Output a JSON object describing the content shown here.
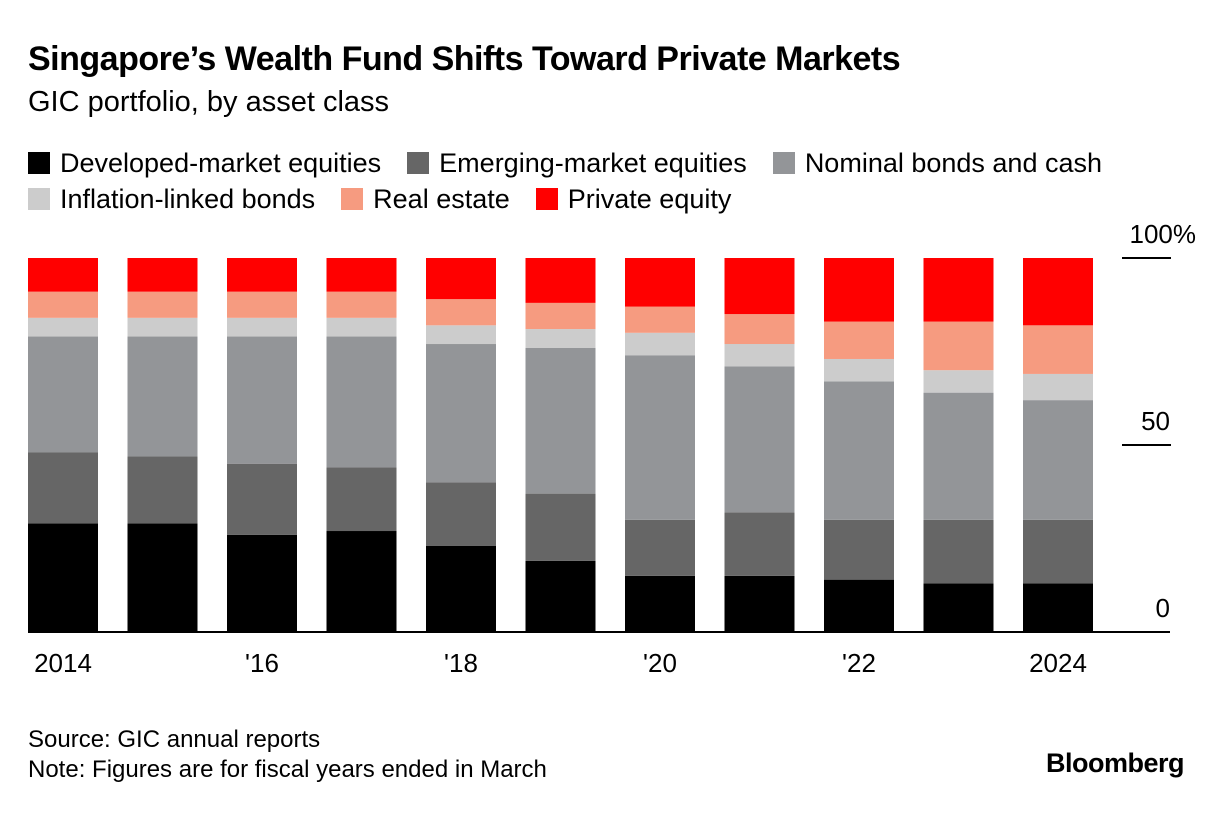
{
  "header": {
    "title": "Singapore’s Wealth Fund Shifts Toward Private Markets",
    "subtitle": "GIC portfolio, by asset class"
  },
  "footer": {
    "source": "Source: GIC annual reports",
    "note": "Note: Figures are for fiscal years ended in March",
    "logo": "Bloomberg"
  },
  "chart_data": {
    "type": "bar",
    "stacked": true,
    "categories": [
      "2014",
      "2015",
      "2016",
      "2017",
      "2018",
      "2019",
      "2020",
      "2021",
      "2022",
      "2023",
      "2024"
    ],
    "x_tick_labels": [
      "2014",
      "",
      "'16",
      "",
      "'18",
      "",
      "'20",
      "",
      "'22",
      "",
      "2024"
    ],
    "y_ticks": [
      {
        "value": 100,
        "label": "100%"
      },
      {
        "value": 50,
        "label": "50"
      },
      {
        "value": 0,
        "label": "0"
      }
    ],
    "ylim": [
      0,
      100
    ],
    "legend_position": "top",
    "grid": false,
    "series": [
      {
        "name": "Developed-market equities",
        "color": "#000000",
        "values": [
          29,
          29,
          26,
          27,
          23,
          19,
          15,
          15,
          14,
          13,
          13
        ]
      },
      {
        "name": "Emerging-market equities",
        "color": "#666666",
        "values": [
          19,
          18,
          19,
          17,
          17,
          18,
          15,
          17,
          16,
          17,
          17
        ]
      },
      {
        "name": "Nominal bonds and cash",
        "color": "#939598",
        "values": [
          31,
          32,
          34,
          35,
          37,
          39,
          44,
          39,
          37,
          34,
          32
        ]
      },
      {
        "name": "Inflation-linked bonds",
        "color": "#cccccc",
        "values": [
          5,
          5,
          5,
          5,
          5,
          5,
          6,
          6,
          6,
          6,
          7
        ]
      },
      {
        "name": "Real estate",
        "color": "#f69b80",
        "values": [
          7,
          7,
          7,
          7,
          7,
          7,
          7,
          8,
          10,
          13,
          13
        ]
      },
      {
        "name": "Private equity",
        "color": "#ff0000",
        "values": [
          9,
          9,
          9,
          9,
          11,
          12,
          13,
          15,
          17,
          17,
          18
        ]
      }
    ]
  }
}
